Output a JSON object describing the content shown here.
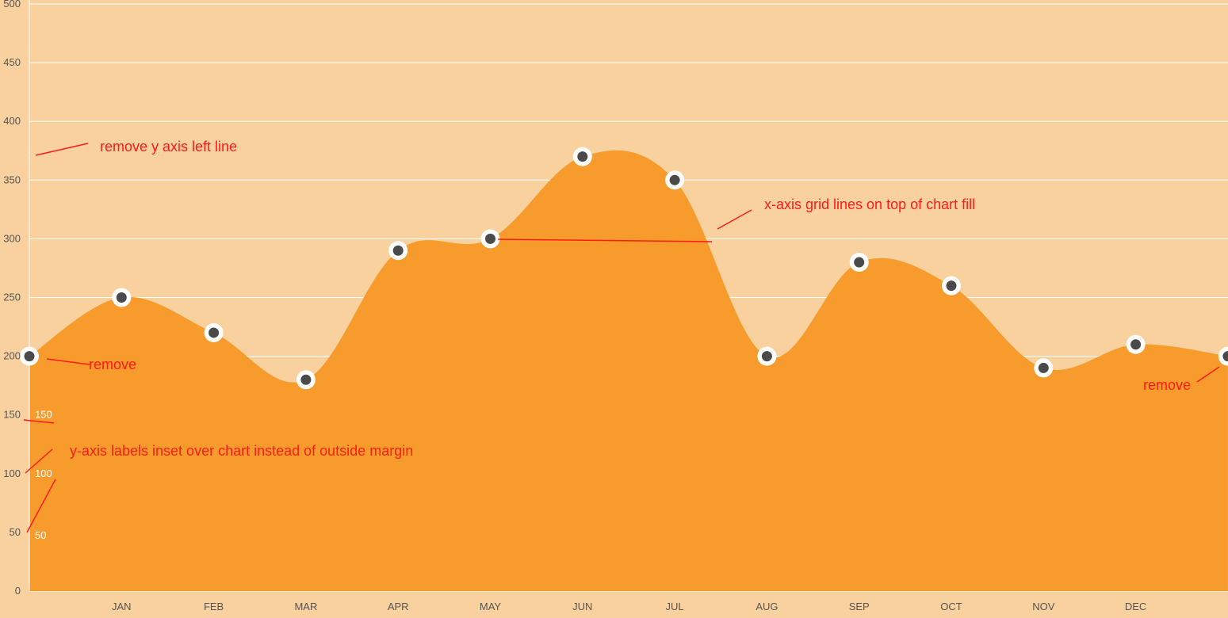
{
  "colors": {
    "background": "#f9d19f",
    "fill": "#f79c2c",
    "grid": "#ffffff",
    "point_outer": "#ffffff",
    "point_inner": "#4a4a4a",
    "annotation": "#ff1a1a",
    "inset_label": "#ffffff",
    "tick_label": "#555555"
  },
  "chart_data": {
    "type": "area",
    "smooth": true,
    "ylim": [
      0,
      500
    ],
    "yticks": [
      0,
      50,
      100,
      150,
      200,
      250,
      300,
      350,
      400,
      450,
      500
    ],
    "inset_ylabels": [
      "150",
      "100",
      "50"
    ],
    "categories": [
      "JAN",
      "FEB",
      "MAR",
      "APR",
      "MAY",
      "JUN",
      "JUL",
      "AUG",
      "SEP",
      "OCT",
      "NOV",
      "DEC"
    ],
    "x": [
      0,
      1,
      2,
      3,
      4,
      5,
      6,
      7,
      8,
      9,
      10,
      11,
      12,
      13
    ],
    "values": [
      200,
      250,
      220,
      180,
      290,
      300,
      370,
      350,
      200,
      280,
      260,
      190,
      210,
      200
    ],
    "grid": true,
    "title": "",
    "xlabel": "",
    "ylabel": ""
  },
  "annotations": [
    {
      "text": "remove y axis left line"
    },
    {
      "text": "x-axis grid lines on top of chart fill"
    },
    {
      "text": "remove"
    },
    {
      "text": "remove"
    },
    {
      "text": "y-axis labels inset over chart instead of outside margin"
    }
  ]
}
